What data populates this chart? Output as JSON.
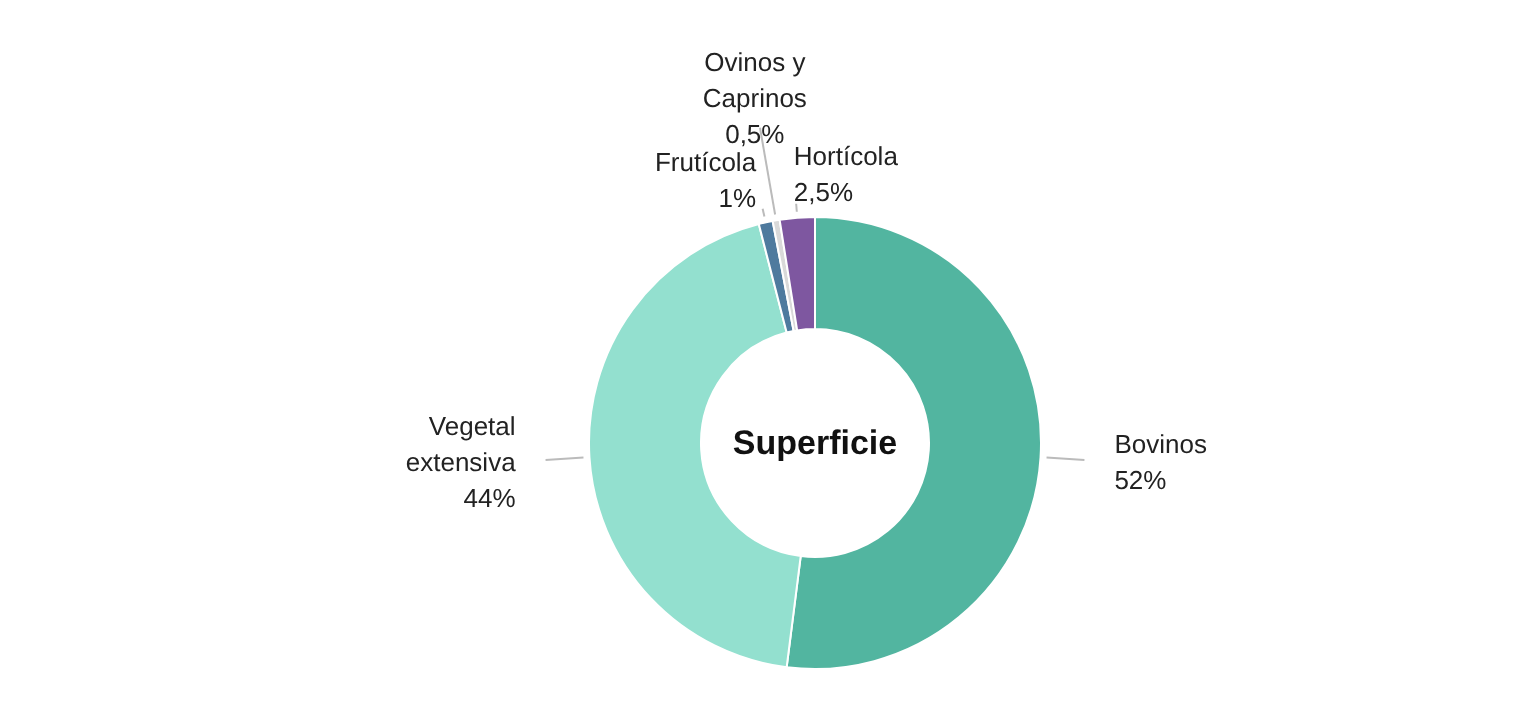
{
  "chart_data": {
    "type": "donut",
    "title": "Superficie",
    "categories": [
      "Bovinos",
      "Vegetal extensiva",
      "Frutícola",
      "Ovinos y Caprinos",
      "Hortícola"
    ],
    "values": [
      52,
      44,
      1,
      0.5,
      2.5
    ],
    "value_labels": [
      "52%",
      "44%",
      "1%",
      "0,5%",
      "2,5%"
    ],
    "colors": [
      "#52b5a0",
      "#93e0cf",
      "#4e7a9e",
      "#d9d9d9",
      "#7e57a0"
    ],
    "legend": false
  }
}
